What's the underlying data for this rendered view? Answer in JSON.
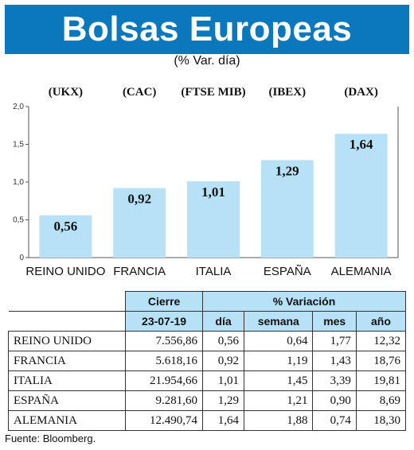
{
  "title": "Bolsas Europeas",
  "subtitle": "(% Var. día)",
  "chart_data": {
    "type": "bar",
    "indices": [
      "(UKX)",
      "(CAC)",
      "(FTSE MIB)",
      "(IBEX)",
      "(DAX)"
    ],
    "categories": [
      "REINO UNIDO",
      "FRANCIA",
      "ITALIA",
      "ESPAÑA",
      "ALEMANIA"
    ],
    "values": [
      0.56,
      0.92,
      1.01,
      1.29,
      1.64
    ],
    "value_labels": [
      "0,56",
      "0,92",
      "1,01",
      "1,29",
      "1,64"
    ],
    "yticks": [
      "0",
      "0,5",
      "1,0",
      "1,5",
      "2,0"
    ],
    "ytick_values": [
      0,
      0.5,
      1.0,
      1.5,
      2.0
    ],
    "ylim": [
      0,
      2.0
    ],
    "bar_color": "#b7e1f6",
    "grid": false
  },
  "table": {
    "group_headers": [
      "Cierre",
      "% Variación"
    ],
    "subheaders": [
      "23-07-19",
      "día",
      "semana",
      "mes",
      "año"
    ],
    "rows": [
      {
        "name": "REINO UNIDO",
        "cierre": "7.556,86",
        "dia": "0,56",
        "semana": "0,64",
        "mes": "1,77",
        "ano": "12,32"
      },
      {
        "name": "FRANCIA",
        "cierre": "5.618,16",
        "dia": "0,92",
        "semana": "1,19",
        "mes": "1,43",
        "ano": "18,76"
      },
      {
        "name": "ITALIA",
        "cierre": "21.954,66",
        "dia": "1,01",
        "semana": "1,45",
        "mes": "3,39",
        "ano": "19,81"
      },
      {
        "name": "ESPAÑA",
        "cierre": "9.281,60",
        "dia": "1,29",
        "semana": "1,21",
        "mes": "0,90",
        "ano": "8,69"
      },
      {
        "name": "ALEMANIA",
        "cierre": "12.490,74",
        "dia": "1,64",
        "semana": "1,88",
        "mes": "0,74",
        "ano": "18,30"
      }
    ]
  },
  "source": "Fuente: Bloomberg.",
  "colors": {
    "title_bar": "#0b77bd",
    "accent_light": "#b7e1f6"
  }
}
